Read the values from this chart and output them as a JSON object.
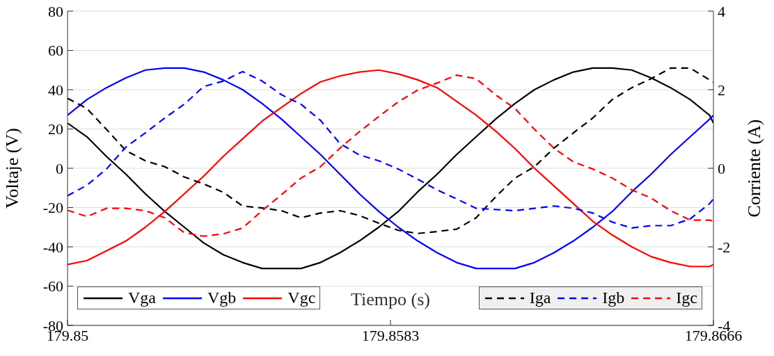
{
  "chart_data": {
    "type": "line",
    "xlabel": "Tiempo (s)",
    "ylabel": "Voltaje (V)",
    "y2label": "Corriente (A)",
    "x": [
      179.85,
      179.8505,
      179.851,
      179.8515,
      179.852,
      179.8525,
      179.853,
      179.8535,
      179.854,
      179.8545,
      179.855,
      179.8555,
      179.856,
      179.8565,
      179.857,
      179.8575,
      179.858,
      179.8585,
      179.859,
      179.8595,
      179.86,
      179.8605,
      179.861,
      179.8615,
      179.862,
      179.8625,
      179.863,
      179.8635,
      179.864,
      179.8645,
      179.865,
      179.8655,
      179.866,
      179.8665,
      179.8666
    ],
    "series": [
      {
        "name": "Vga",
        "color": "#000000",
        "values": [
          23,
          16,
          6,
          -3,
          -13,
          -22,
          -30,
          -38,
          -44,
          -48,
          -51,
          -51,
          -51,
          -48,
          -43,
          -37,
          -30,
          -22,
          -12,
          -3,
          7,
          16,
          25,
          33,
          40,
          45,
          49,
          51,
          51,
          50,
          46,
          41,
          35,
          27,
          23
        ]
      },
      {
        "name": "Vgb",
        "color": "#0000ff",
        "values": [
          27,
          35,
          41,
          46,
          50,
          51,
          51,
          49,
          45,
          40,
          33,
          25,
          16,
          7,
          -3,
          -13,
          -22,
          -30,
          -37,
          -43,
          -48,
          -51,
          -51,
          -51,
          -48,
          -43,
          -37,
          -30,
          -22,
          -12,
          -3,
          7,
          16,
          25,
          27
        ]
      },
      {
        "name": "Vgc",
        "color": "#ff0000",
        "values": [
          -49,
          -47,
          -42,
          -37,
          -30,
          -22,
          -13,
          -4,
          6,
          15,
          24,
          31,
          38,
          44,
          47,
          49,
          50,
          48,
          45,
          41,
          34,
          27,
          19,
          10,
          0,
          -9,
          -18,
          -27,
          -34,
          -40,
          -45,
          -48,
          -50,
          -50,
          -49
        ]
      },
      {
        "name": "Iga",
        "color": "#000000",
        "axis": "y2",
        "line_style": "dashed",
        "values": [
          1.78,
          1.52,
          0.99,
          0.45,
          0.19,
          0.04,
          -0.22,
          -0.4,
          -0.61,
          -0.96,
          -1.01,
          -1.08,
          -1.26,
          -1.14,
          -1.08,
          -1.2,
          -1.4,
          -1.58,
          -1.66,
          -1.61,
          -1.55,
          -1.26,
          -0.73,
          -0.25,
          0.04,
          0.51,
          0.9,
          1.28,
          1.75,
          2.05,
          2.28,
          2.55,
          2.55,
          2.25,
          2.19
        ]
      },
      {
        "name": "Igb",
        "color": "#0000ff",
        "axis": "y2",
        "line_style": "dashed",
        "values": [
          -0.7,
          -0.43,
          -0.02,
          0.54,
          0.9,
          1.28,
          1.63,
          2.08,
          2.22,
          2.46,
          2.22,
          1.87,
          1.63,
          1.22,
          0.63,
          0.34,
          0.19,
          -0.02,
          -0.28,
          -0.55,
          -0.78,
          -1.02,
          -1.05,
          -1.08,
          -1.02,
          -0.96,
          -1.02,
          -1.14,
          -1.37,
          -1.52,
          -1.46,
          -1.46,
          -1.29,
          -0.9,
          -0.78
        ]
      },
      {
        "name": "Igc",
        "color": "#ff0000",
        "axis": "y2",
        "line_style": "dashed",
        "values": [
          -1.07,
          -1.23,
          -1.02,
          -1.02,
          -1.08,
          -1.26,
          -1.64,
          -1.73,
          -1.67,
          -1.52,
          -1.08,
          -0.67,
          -0.25,
          0.04,
          0.51,
          0.93,
          1.32,
          1.69,
          1.99,
          2.17,
          2.37,
          2.28,
          1.87,
          1.52,
          0.99,
          0.51,
          0.16,
          -0.02,
          -0.25,
          -0.55,
          -0.76,
          -1.08,
          -1.32,
          -1.32,
          -1.35
        ]
      }
    ],
    "xlim": [
      179.85,
      179.8666
    ],
    "xticks": [
      179.85,
      179.8583,
      179.8666
    ],
    "ylim": [
      -80,
      80
    ],
    "yticks": [
      -80,
      -60,
      -40,
      -20,
      0,
      20,
      40,
      60,
      80
    ],
    "y2lim": [
      -4,
      4
    ],
    "y2ticks": [
      -4,
      -2,
      0,
      2,
      4
    ],
    "grid": "y",
    "legend": "bottom"
  }
}
